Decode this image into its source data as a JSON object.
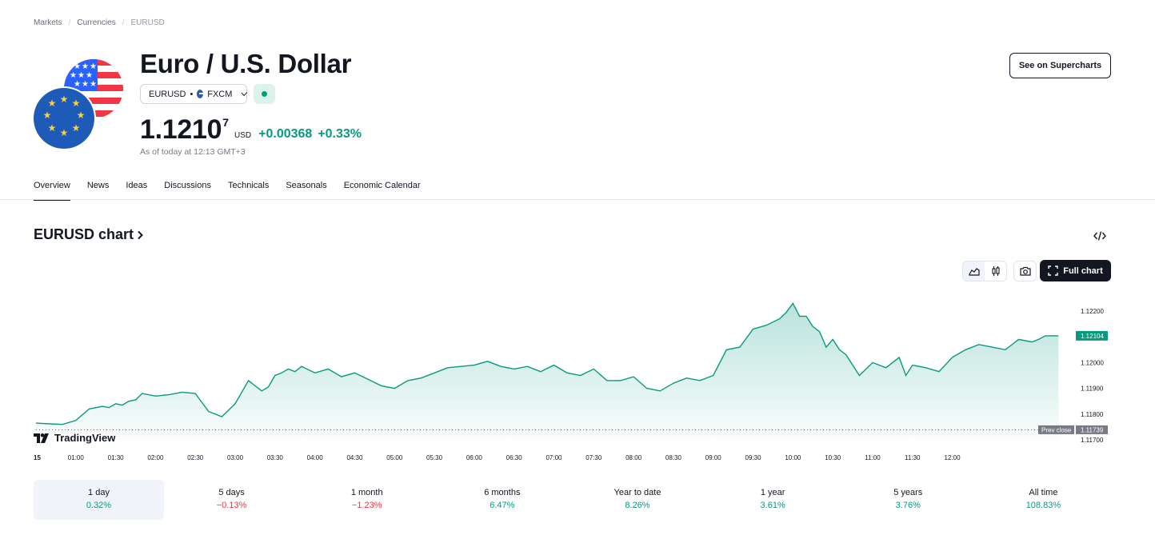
{
  "breadcrumbs": [
    "Markets",
    "Currencies",
    "EURUSD"
  ],
  "header": {
    "title": "Euro / U.S. Dollar",
    "symbol": "EURUSD",
    "exchange": "FXCM",
    "price_main": "1.1210",
    "price_frac": "7",
    "currency": "USD",
    "change_abs": "+0.00368",
    "change_pct": "+0.33%",
    "as_of": "As of today at 12:13 GMT+3",
    "supercharts_label": "See on Supercharts"
  },
  "tabs": [
    "Overview",
    "News",
    "Ideas",
    "Discussions",
    "Technicals",
    "Seasonals",
    "Economic Calendar"
  ],
  "chart_section": {
    "title": "EURUSD chart",
    "full_chart_label": "Full chart",
    "logo_text": "TradingView"
  },
  "colors": {
    "up": "#089981",
    "down": "#f23645",
    "text": "#131722",
    "muted": "#787b86"
  },
  "chart_data": {
    "type": "area",
    "x_tick_labels": [
      "15",
      "01:00",
      "01:30",
      "02:00",
      "02:30",
      "03:00",
      "03:30",
      "04:00",
      "04:30",
      "05:00",
      "05:30",
      "06:00",
      "06:30",
      "07:00",
      "07:30",
      "08:00",
      "08:30",
      "09:00",
      "09:30",
      "10:00",
      "10:30",
      "11:00",
      "11:30",
      "12:00"
    ],
    "y_tick_labels": [
      "1.12200",
      "1.12000",
      "1.11900",
      "1.11800",
      "1.11700"
    ],
    "ylim": [
      1.117,
      1.1229
    ],
    "x_minutes": [
      0,
      10,
      20,
      30,
      40,
      50,
      55,
      60,
      65,
      70,
      75,
      80,
      90,
      100,
      110,
      120,
      130,
      140,
      150,
      160,
      170,
      175,
      180,
      185,
      190,
      195,
      200,
      210,
      220,
      230,
      240,
      250,
      260,
      270,
      280,
      290,
      300,
      310,
      320,
      330,
      340,
      350,
      360,
      370,
      380,
      390,
      400,
      410,
      420,
      430,
      440,
      450,
      460,
      470,
      480,
      490,
      500,
      510,
      520,
      530,
      540,
      550,
      560,
      565,
      570,
      575,
      580,
      585,
      590,
      595,
      600,
      605,
      610,
      620,
      630,
      640,
      650,
      655,
      660,
      670,
      680,
      690,
      700,
      710,
      720,
      730,
      740,
      750,
      755,
      760,
      770
    ],
    "y_values": [
      1.11765,
      1.11762,
      1.1176,
      1.11775,
      1.1182,
      1.1183,
      1.11825,
      1.1184,
      1.11835,
      1.1185,
      1.11855,
      1.1188,
      1.1187,
      1.11875,
      1.11885,
      1.1188,
      1.1181,
      1.1179,
      1.1184,
      1.1193,
      1.1189,
      1.11905,
      1.1195,
      1.1196,
      1.11975,
      1.11965,
      1.11985,
      1.1196,
      1.11975,
      1.11945,
      1.1196,
      1.11935,
      1.1191,
      1.119,
      1.1193,
      1.1194,
      1.1196,
      1.1198,
      1.11985,
      1.1199,
      1.12005,
      1.11985,
      1.11975,
      1.11985,
      1.11965,
      1.1199,
      1.1196,
      1.1195,
      1.11975,
      1.1193,
      1.1193,
      1.11945,
      1.119,
      1.1189,
      1.1192,
      1.1194,
      1.1193,
      1.1195,
      1.1205,
      1.1206,
      1.1213,
      1.12145,
      1.1217,
      1.12195,
      1.1223,
      1.1218,
      1.1218,
      1.1214,
      1.1212,
      1.1206,
      1.1209,
      1.1205,
      1.1203,
      1.1195,
      1.12,
      1.1198,
      1.1202,
      1.1195,
      1.1199,
      1.1198,
      1.11965,
      1.1202,
      1.1205,
      1.1207,
      1.1206,
      1.1205,
      1.1209,
      1.1208,
      1.1209,
      1.12104,
      1.12104
    ],
    "last_value_label": "1.12104",
    "prev_close_label": "Prev close",
    "prev_close_value": "1.11739",
    "prev_close": 1.11739
  },
  "periods": [
    {
      "label": "1 day",
      "value": "0.32%",
      "dir": "up"
    },
    {
      "label": "5 days",
      "value": "−0.13%",
      "dir": "down"
    },
    {
      "label": "1 month",
      "value": "−1.23%",
      "dir": "down"
    },
    {
      "label": "6 months",
      "value": "6.47%",
      "dir": "up"
    },
    {
      "label": "Year to date",
      "value": "8.26%",
      "dir": "up"
    },
    {
      "label": "1 year",
      "value": "3.61%",
      "dir": "up"
    },
    {
      "label": "5 years",
      "value": "3.76%",
      "dir": "up"
    },
    {
      "label": "All time",
      "value": "108.83%",
      "dir": "up"
    }
  ]
}
